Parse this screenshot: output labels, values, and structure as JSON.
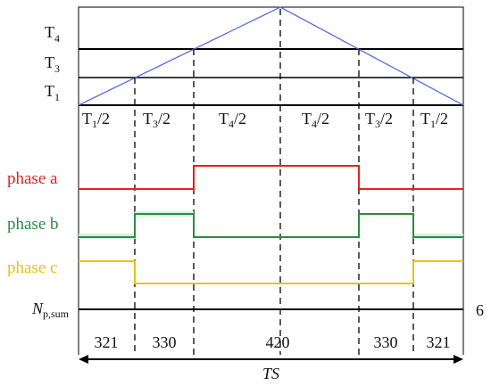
{
  "thresholds": {
    "t4": {
      "main": "T",
      "sub": "4"
    },
    "t3": {
      "main": "T",
      "sub": "3"
    },
    "t1": {
      "main": "T",
      "sub": "1"
    }
  },
  "intervals": [
    {
      "main": "T",
      "sub": "1",
      "tail": "/2"
    },
    {
      "main": "T",
      "sub": "3",
      "tail": "/2"
    },
    {
      "main": "T",
      "sub": "4",
      "tail": "/2"
    },
    {
      "main": "T",
      "sub": "4",
      "tail": "/2"
    },
    {
      "main": "T",
      "sub": "3",
      "tail": "/2"
    },
    {
      "main": "T",
      "sub": "1",
      "tail": "/2"
    }
  ],
  "phases": {
    "a": {
      "label": "phase a",
      "color": "#e8201c"
    },
    "b": {
      "label": "phase b",
      "color": "#2e8b3e"
    },
    "c": {
      "label": "phase c",
      "color": "#e8c21a"
    }
  },
  "npsum": {
    "main": "N",
    "sub": "p,sum",
    "value": "6"
  },
  "states": [
    "321",
    "330",
    "420",
    "330",
    "321"
  ],
  "period": {
    "main": "T",
    "sub": "S"
  },
  "colors": {
    "carrier": "#5a6ee0",
    "line": "#000000"
  }
}
